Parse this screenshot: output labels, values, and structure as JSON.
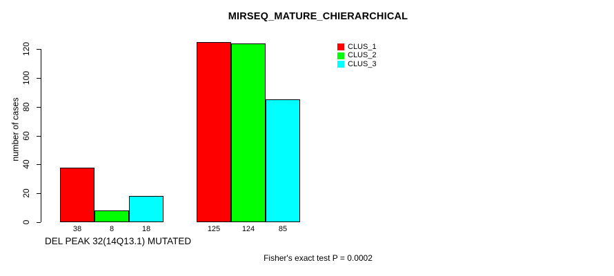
{
  "chart_data": {
    "type": "bar",
    "title": "MIRSEQ_MATURE_CHIERARCHICAL",
    "ylabel": "number of cases",
    "xlabel": "DEL PEAK 32(14Q13.1) MUTATED",
    "annotation": "Fisher's exact test P = 0.0002",
    "ylim": [
      0,
      120
    ],
    "yticks": [
      0,
      20,
      40,
      60,
      80,
      100,
      120
    ],
    "groups": 2,
    "series": [
      {
        "name": "CLUS_1",
        "color": "#ff0000",
        "values": [
          38,
          125
        ]
      },
      {
        "name": "CLUS_2",
        "color": "#00ff00",
        "values": [
          8,
          124
        ]
      },
      {
        "name": "CLUS_3",
        "color": "#00ffff",
        "values": [
          18,
          85
        ]
      }
    ],
    "bar_value_labels": [
      [
        38,
        8,
        18
      ],
      [
        125,
        124,
        85
      ]
    ],
    "legend_position": "top-right",
    "grid": false
  },
  "colors": {
    "background": "#ffffff",
    "axis": "#000000",
    "bar_border": "#000000",
    "text": "#000000"
  }
}
